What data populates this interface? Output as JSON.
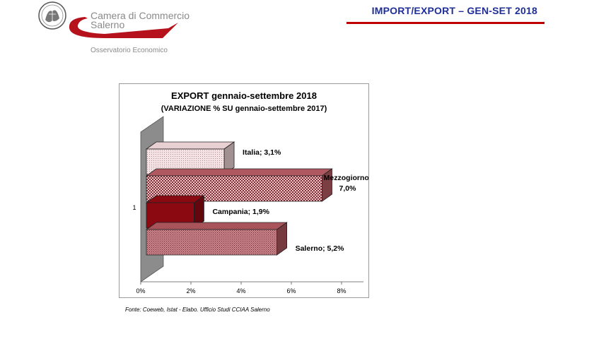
{
  "header": {
    "org_name_line1": "Camera di Commercio",
    "org_name_line2": "Salerno",
    "org_subtitle": "Osservatorio Economico",
    "page_title": "IMPORT/EXPORT  –  GEN-SET 2018",
    "title_color": "#1f2f9a",
    "rule_color": "#c00000"
  },
  "chart_data": {
    "type": "bar",
    "orientation": "horizontal",
    "style": "3d",
    "title": "EXPORT gennaio-settembre 2018",
    "subtitle": "(VARIAZIONE % SU gennaio-settembre 2017)",
    "y_category_label": "1",
    "x_ticks": [
      "0%",
      "2%",
      "4%",
      "6%",
      "8%"
    ],
    "xlim": [
      0,
      8
    ],
    "grid": false,
    "legend": "none",
    "series": [
      {
        "name": "Italia",
        "value": 3.1,
        "label": "Italia; 3,1%",
        "color": "#e8cfd2",
        "pattern": "dots-light"
      },
      {
        "name": "Mezzogiorno",
        "value": 7.0,
        "label_lines": [
          "Mezzogiorno;",
          "7,0%"
        ],
        "color": "#b0585f",
        "pattern": "checker"
      },
      {
        "name": "Campania",
        "value": 1.9,
        "label": "Campania; 1,9%",
        "color": "#8b0a12",
        "pattern": "solid"
      },
      {
        "name": "Salerno",
        "value": 5.2,
        "label": "Salerno; 5,2%",
        "color": "#a8545a",
        "pattern": "dots-dark"
      }
    ]
  },
  "footer": {
    "source": "Fonte: Coeweb, Istat -  Elabo. Ufficio Studi CCIAA Salerno"
  }
}
